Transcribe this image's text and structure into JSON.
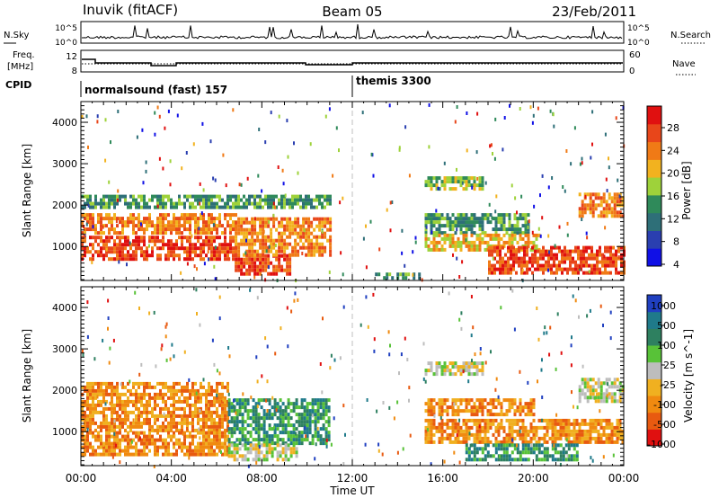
{
  "header": {
    "station": "Inuvik (fitACF)",
    "beam": "Beam 05",
    "date": "23/Feb/2011"
  },
  "top_panels": {
    "nsky_label": "N.Sky",
    "nsky_ticks": [
      "10^5",
      "10^0"
    ],
    "nsearch_label": "N.Search",
    "nsearch_ticks": [
      "10^5",
      "10^0"
    ],
    "freq_label_1": "Freq.",
    "freq_label_2": "[MHz]",
    "freq_ticks": [
      "12",
      "8"
    ],
    "nave_label": "Nave",
    "nave_ticks": [
      "60",
      "0"
    ],
    "cpid_label": "CPID",
    "cpid_segments": [
      {
        "label": "normalsound (fast) 157",
        "start_hour": 0,
        "end_hour": 12
      },
      {
        "label": "themis 3300",
        "start_hour": 12,
        "end_hour": 24
      }
    ]
  },
  "colors": {
    "power_scale": [
      "#1010e6",
      "#2a3fb0",
      "#2e6f78",
      "#2f8a5a",
      "#9ed23a",
      "#f2b21f",
      "#f07a16",
      "#e8461a",
      "#e01010"
    ],
    "velocity_scale": [
      "#2040c0",
      "#1f7a8a",
      "#2e8060",
      "#58c238",
      "#bdbdbd",
      "#f0b020",
      "#f08a10",
      "#e85a10",
      "#e01010"
    ],
    "gap_line": "#bfbfbf"
  },
  "chart_data": [
    {
      "type": "heatmap",
      "panel": "power",
      "xlabel": "",
      "ylabel": "Slant Range [km]",
      "xlim_hours": [
        0,
        24
      ],
      "ylim_km": [
        180,
        4500
      ],
      "yticks": [
        "1000",
        "2000",
        "3000",
        "4000"
      ],
      "colorbar": {
        "label": "Power [dB]",
        "ticks": [
          "28",
          "24",
          "20",
          "16",
          "12",
          "8",
          "4"
        ],
        "range": [
          0,
          30
        ]
      },
      "data_gap_hours": [
        12
      ],
      "regions": [
        {
          "start_hour": 0.0,
          "end_hour": 6.8,
          "min_km": 1300,
          "max_km": 1800,
          "value_db": 22
        },
        {
          "start_hour": 0.0,
          "end_hour": 6.8,
          "min_km": 650,
          "max_km": 1250,
          "value_db": 26
        },
        {
          "start_hour": 0.0,
          "end_hour": 11.0,
          "min_km": 1900,
          "max_km": 2250,
          "value_db": 10
        },
        {
          "start_hour": 6.8,
          "end_hour": 9.3,
          "min_km": 350,
          "max_km": 800,
          "value_db": 28
        },
        {
          "start_hour": 6.8,
          "end_hour": 11.0,
          "min_km": 800,
          "max_km": 1700,
          "value_db": 24
        },
        {
          "start_hour": 15.2,
          "end_hour": 17.8,
          "min_km": 2350,
          "max_km": 2700,
          "value_db": 16
        },
        {
          "start_hour": 15.2,
          "end_hour": 19.8,
          "min_km": 1300,
          "max_km": 1800,
          "value_db": 12
        },
        {
          "start_hour": 15.2,
          "end_hour": 20.3,
          "min_km": 900,
          "max_km": 1300,
          "value_db": 20
        },
        {
          "start_hour": 18.0,
          "end_hour": 24.0,
          "min_km": 350,
          "max_km": 1000,
          "value_db": 28
        },
        {
          "start_hour": 22.0,
          "end_hour": 24.0,
          "min_km": 1700,
          "max_km": 2300,
          "value_db": 24
        },
        {
          "start_hour": 13.0,
          "end_hour": 15.0,
          "min_km": 200,
          "max_km": 350,
          "value_db": 10
        }
      ]
    },
    {
      "type": "heatmap",
      "panel": "velocity",
      "xlabel": "Time UT",
      "ylabel": "Slant Range [km]",
      "xlim_hours": [
        0,
        24
      ],
      "xticks": [
        "00:00",
        "04:00",
        "08:00",
        "12:00",
        "16:00",
        "20:00",
        "00:00"
      ],
      "ylim_km": [
        180,
        4500
      ],
      "yticks": [
        "1000",
        "2000",
        "3000",
        "4000"
      ],
      "colorbar": {
        "label": "Velocity [m s^-1]",
        "ticks": [
          "1000",
          "500",
          "100",
          "25",
          "-25",
          "-100",
          "-500",
          "-1000"
        ]
      },
      "data_gap_hours": [
        12
      ],
      "regions": [
        {
          "start_hour": 0.0,
          "end_hour": 6.5,
          "min_km": 1000,
          "max_km": 2200,
          "value_ms": -150
        },
        {
          "start_hour": 0.0,
          "end_hour": 6.5,
          "min_km": 400,
          "max_km": 1000,
          "value_ms": -200
        },
        {
          "start_hour": 6.5,
          "end_hour": 11.0,
          "min_km": 700,
          "max_km": 1800,
          "value_ms": 150
        },
        {
          "start_hour": 6.5,
          "end_hour": 9.5,
          "min_km": 300,
          "max_km": 700,
          "value_ms": 0
        },
        {
          "start_hour": 15.2,
          "end_hour": 17.8,
          "min_km": 2350,
          "max_km": 2700,
          "value_ms": 0
        },
        {
          "start_hour": 15.2,
          "end_hour": 20.0,
          "min_km": 1400,
          "max_km": 1800,
          "value_ms": -150
        },
        {
          "start_hour": 15.2,
          "end_hour": 24.0,
          "min_km": 700,
          "max_km": 1300,
          "value_ms": -200
        },
        {
          "start_hour": 17.0,
          "end_hour": 22.0,
          "min_km": 300,
          "max_km": 700,
          "value_ms": 100
        },
        {
          "start_hour": 22.0,
          "end_hour": 24.0,
          "min_km": 1700,
          "max_km": 2300,
          "value_ms": 0
        }
      ]
    }
  ]
}
